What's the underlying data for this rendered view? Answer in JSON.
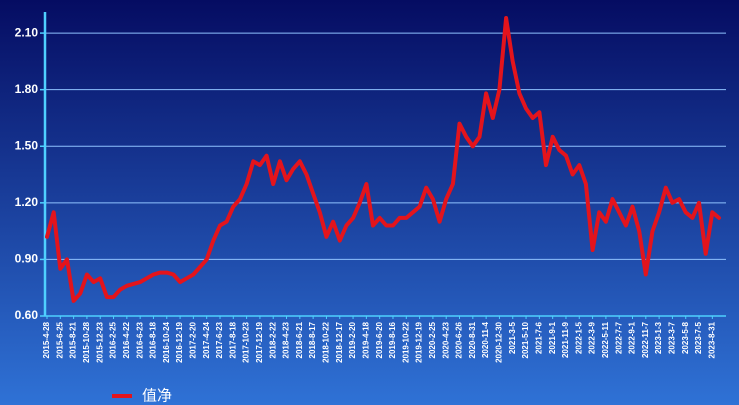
{
  "chart_data": {
    "type": "line",
    "categories": [
      "2015-4-28",
      null,
      "2015-6-25",
      null,
      "2015-8-21",
      null,
      "2015-10-28",
      null,
      "2015-12-23",
      null,
      "2016-2-25",
      null,
      "2016-4-22",
      null,
      "2016-6-23",
      null,
      "2016-8-18",
      null,
      "2016-10-24",
      null,
      "2016-12-19",
      null,
      "2017-2-20",
      null,
      "2017-4-24",
      null,
      "2017-6-23",
      null,
      "2017-8-18",
      null,
      "2017-10-23",
      null,
      "2017-12-19",
      null,
      "2018-2-22",
      null,
      "2018-4-23",
      null,
      "2018-6-21",
      null,
      "2018-8-17",
      null,
      "2018-10-22",
      null,
      "2018-12-17",
      null,
      "2019-2-20",
      null,
      "2019-4-18",
      null,
      "2019-6-20",
      null,
      "2019-8-16",
      null,
      "2019-10-22",
      null,
      "2019-12-19",
      null,
      "2020-2-25",
      null,
      "2020-4-23",
      null,
      "2020-6-26",
      null,
      "2020-8-31",
      null,
      "2020-11-4",
      null,
      "2020-12-30",
      null,
      "2021-3-5",
      null,
      "2021-5-10",
      null,
      "2021-7-6",
      null,
      "2021-9-1",
      null,
      "2021-11-9",
      null,
      "2022-1-5",
      null,
      "2022-3-9",
      null,
      "2022-5-11",
      null,
      "2022-7-7",
      null,
      "2022-9-1",
      null,
      "2022-11-7",
      null,
      "2023-1-3",
      null,
      "2023-3-7",
      null,
      "2023-5-8",
      null,
      "2023-7-5",
      null,
      "2023-8-31",
      null
    ],
    "series": [
      {
        "name": "值净",
        "color": "#e3141c",
        "values": [
          1.02,
          1.15,
          0.85,
          0.9,
          0.68,
          0.72,
          0.82,
          0.78,
          0.8,
          0.7,
          0.7,
          0.74,
          0.76,
          0.77,
          0.78,
          0.8,
          0.82,
          0.83,
          0.83,
          0.82,
          0.78,
          0.8,
          0.82,
          0.86,
          0.9,
          1.0,
          1.08,
          1.1,
          1.18,
          1.22,
          1.3,
          1.42,
          1.4,
          1.45,
          1.3,
          1.42,
          1.32,
          1.38,
          1.42,
          1.35,
          1.25,
          1.15,
          1.02,
          1.1,
          1.0,
          1.08,
          1.12,
          1.2,
          1.3,
          1.08,
          1.12,
          1.08,
          1.08,
          1.12,
          1.12,
          1.15,
          1.18,
          1.28,
          1.22,
          1.1,
          1.22,
          1.3,
          1.62,
          1.55,
          1.5,
          1.55,
          1.78,
          1.65,
          1.8,
          2.18,
          1.95,
          1.78,
          1.7,
          1.65,
          1.68,
          1.4,
          1.55,
          1.48,
          1.45,
          1.35,
          1.4,
          1.3,
          0.95,
          1.15,
          1.1,
          1.22,
          1.15,
          1.08,
          1.18,
          1.05,
          0.82,
          1.05,
          1.15,
          1.28,
          1.2,
          1.22,
          1.15,
          1.12,
          1.2,
          0.93,
          1.15,
          1.12
        ]
      }
    ],
    "ylim": [
      0.6,
      2.18
    ],
    "yticks": [
      {
        "value": 0.6,
        "label": "0.60"
      },
      {
        "value": 0.9,
        "label": "0.90"
      },
      {
        "value": 1.2,
        "label": "1.20"
      },
      {
        "value": 1.5,
        "label": "1.50"
      },
      {
        "value": 1.8,
        "label": "1.80"
      },
      {
        "value": 2.1,
        "label": "2.10"
      }
    ],
    "grid": true
  }
}
